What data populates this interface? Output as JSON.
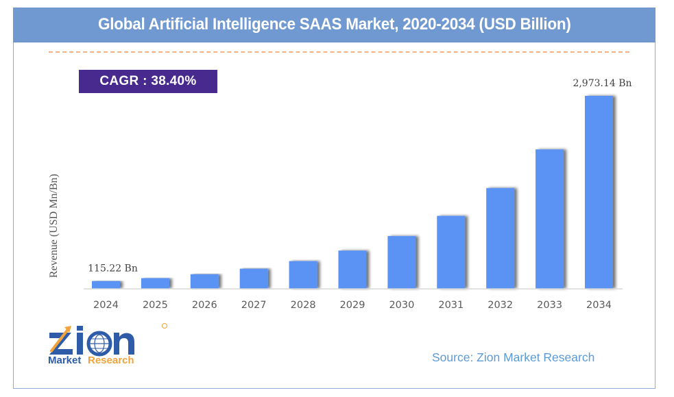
{
  "header": {
    "title": "Global Artificial Intelligence SAAS Market, 2020-2034 (USD Billion)"
  },
  "cagr": {
    "label": "CAGR :",
    "value": "38.40%"
  },
  "source": "Source: Zion Market Research",
  "logo": {
    "word": "Zion",
    "sub1": "Market",
    "sub2": "Research",
    "registered": "®"
  },
  "colors": {
    "header": "#7199d1",
    "bar": "#5a93f4",
    "cagr_bg": "#482a8e",
    "divider": "#f4b183",
    "source": "#5b9bd5"
  },
  "chart_data": {
    "type": "bar",
    "title": "Global Artificial Intelligence SAAS Market, 2020-2034 (USD Billion)",
    "xlabel": "",
    "ylabel": "Revenue (USD Mn/Bn)",
    "categories": [
      "2024",
      "2025",
      "2026",
      "2027",
      "2028",
      "2029",
      "2030",
      "2031",
      "2032",
      "2033",
      "2034"
    ],
    "values": [
      115.22,
      159.5,
      220.7,
      305.5,
      422.8,
      585.1,
      809.8,
      1120.8,
      1551.2,
      2146.8,
      2973.14
    ],
    "data_labels": [
      {
        "index": 0,
        "text": "115.22 Bn"
      },
      {
        "index": 10,
        "text": "2,973.14 Bn"
      }
    ],
    "ylim": [
      0,
      2973.14
    ],
    "grid": false,
    "legend": "none",
    "annotation": "CAGR : 38.40%"
  }
}
